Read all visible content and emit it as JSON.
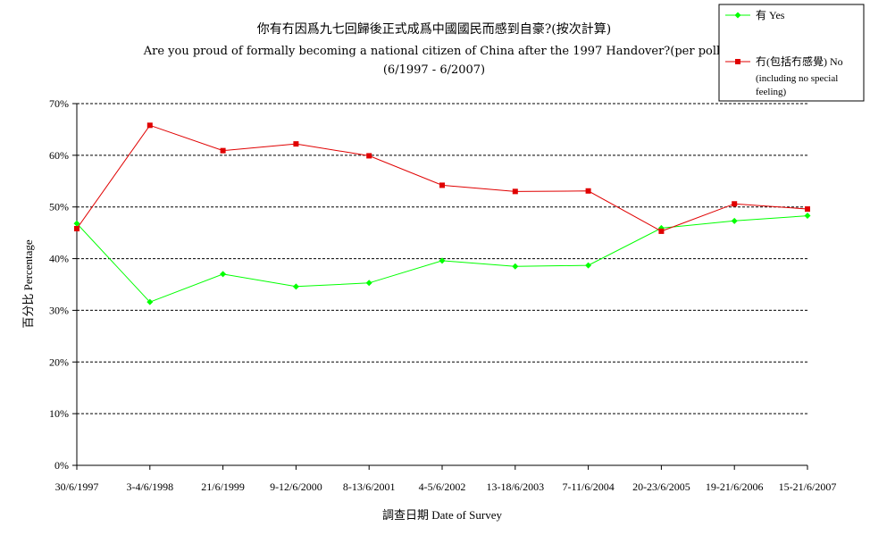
{
  "chart_data": {
    "type": "line",
    "title": "你有冇因爲九七回歸後正式成爲中國國民而感到自豪?(按次計算)",
    "subtitle": "Are you proud of formally becoming a national citizen of China after the 1997 Handover?(per poll)",
    "date_range": "(6/1997 - 6/2007)",
    "xlabel": "調查日期 Date of Survey",
    "ylabel": "百分比 Percentage",
    "ylim": [
      0,
      70
    ],
    "yticks": [
      "0%",
      "10%",
      "20%",
      "30%",
      "40%",
      "50%",
      "60%",
      "70%"
    ],
    "grid": "horizontal dashed",
    "legend_position": "top-right",
    "categories": [
      "30/6/1997",
      "3-4/6/1998",
      "21/6/1999",
      "9-12/6/2000",
      "8-13/6/2001",
      "4-5/6/2002",
      "13-18/6/2003",
      "7-11/6/2004",
      "20-23/6/2005",
      "19-21/6/2006",
      "15-21/6/2007"
    ],
    "series": [
      {
        "name": "有 Yes",
        "color": "#00ff00",
        "marker": "diamond",
        "values": [
          46.8,
          31.6,
          37.0,
          34.6,
          35.3,
          39.6,
          38.5,
          38.7,
          45.9,
          47.3,
          48.3
        ]
      },
      {
        "name": "冇(包括冇感覺) No",
        "name_extra": [
          "(including no special",
          "feeling)"
        ],
        "color": "#e00000",
        "marker": "square",
        "values": [
          45.8,
          65.8,
          60.9,
          62.2,
          59.9,
          54.2,
          53.0,
          53.1,
          45.3,
          50.6,
          49.6
        ]
      }
    ]
  }
}
